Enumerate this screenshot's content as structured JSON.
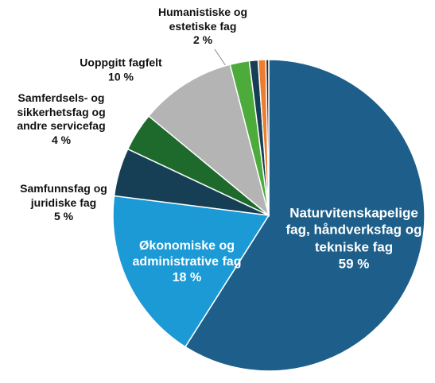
{
  "chart_data": {
    "type": "pie",
    "categories": [
      "Naturvitenskapelige fag, håndverksfag og tekniske fag",
      "Økonomiske og administrative fag",
      "Samfunnsfag og juridiske fag",
      "Samferdsels- og sikkerhetsfag og andre servicefag",
      "Uoppgitt fagfelt",
      "Humanistiske og estetiske fag",
      null,
      null,
      null
    ],
    "values": [
      59,
      18,
      5,
      4,
      10,
      2,
      0.9,
      0.8,
      0.3
    ],
    "value_labels": [
      "59 %",
      "18 %",
      "5 %",
      "4 %",
      "10 %",
      "2 %",
      null,
      null,
      null
    ],
    "colors": [
      "#1d5f8a",
      "#1b9ad6",
      "#163f55",
      "#1e6a2c",
      "#b4b4b4",
      "#4cab3a",
      "#163f55",
      "#ed7d31",
      "#2b2b2b"
    ]
  }
}
